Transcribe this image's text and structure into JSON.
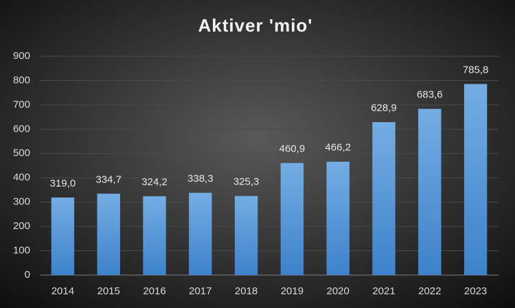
{
  "chart_data": {
    "type": "bar",
    "title": "Aktiver 'mio'",
    "categories": [
      "2014",
      "2015",
      "2016",
      "2017",
      "2018",
      "2019",
      "2020",
      "2021",
      "2022",
      "2023"
    ],
    "values": [
      319.0,
      334.7,
      324.2,
      338.3,
      325.3,
      460.9,
      466.2,
      628.9,
      683.6,
      785.8
    ],
    "value_labels": [
      "319,0",
      "334,7",
      "324,2",
      "338,3",
      "325,3",
      "460,9",
      "466,2",
      "628,9",
      "683,6",
      "785,8"
    ],
    "color": "#5b9bd5",
    "ylim": [
      0,
      900
    ],
    "yticks": [
      0,
      100,
      200,
      300,
      400,
      500,
      600,
      700,
      800,
      900
    ],
    "grid": true
  }
}
